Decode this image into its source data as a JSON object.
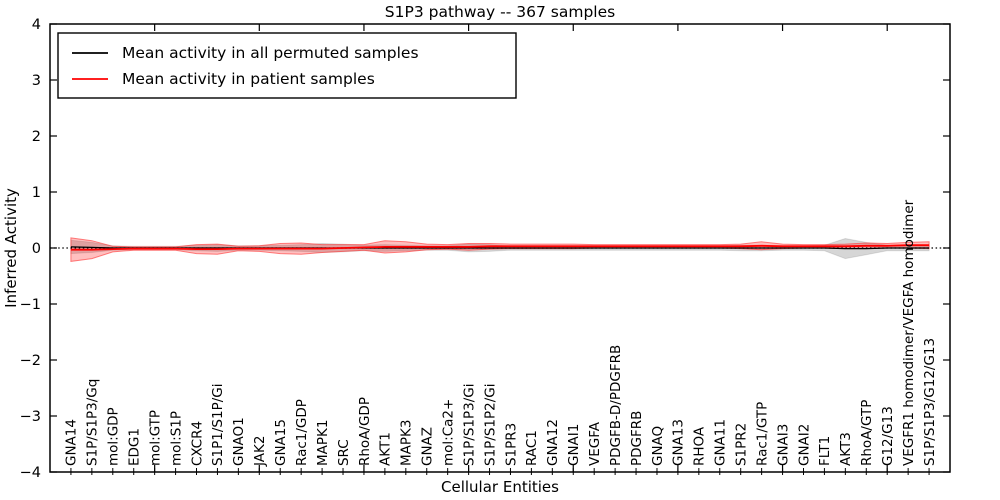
{
  "chart_data": {
    "type": "line",
    "title": "S1P3 pathway -- 367 samples",
    "xlabel": "Cellular Entities",
    "ylabel": "Inferred Activity",
    "ylim": [
      -4,
      4
    ],
    "xlim": [
      0,
      43
    ],
    "yticks": [
      -4,
      -3,
      -2,
      -1,
      0,
      1,
      2,
      3,
      4
    ],
    "ytick_labels": [
      "−4",
      "−3",
      "−2",
      "−1",
      "0",
      "1",
      "2",
      "3",
      "4"
    ],
    "top_axis_ticks": [
      5,
      10,
      15,
      20,
      25,
      30,
      35,
      40
    ],
    "grid": false,
    "legend_position": "upper left",
    "zero_line": {
      "value": 0,
      "style": "dotted",
      "color": "#000000"
    },
    "categories": [
      "GNA14",
      "S1P/S1P3/Gq",
      "mol:GDP",
      "EDG1",
      "mol:GTP",
      "mol:S1P",
      "CXCR4",
      "S1P1/S1P/Gi",
      "GNAO1",
      "JAK2",
      "GNA15",
      "Rac1/GDP",
      "MAPK1",
      "SRC",
      "RhoA/GDP",
      "AKT1",
      "MAPK3",
      "GNAZ",
      "mol:Ca2+",
      "S1P/S1P3/Gi",
      "S1P/S1P2/Gi",
      "S1PR3",
      "RAC1",
      "GNA12",
      "GNAI1",
      "VEGFA",
      "PDGFB-D/PDGFRB",
      "PDGFRB",
      "GNAQ",
      "GNA13",
      "RHOA",
      "GNA11",
      "S1PR2",
      "Rac1/GTP",
      "GNAI3",
      "GNAI2",
      "FLT1",
      "AKT3",
      "RhoA/GTP",
      "G12/G13",
      "VEGFR1 homodimer/VEGFA homodimer",
      "S1P/S1P3/G12/G13"
    ],
    "series": [
      {
        "name": "Mean activity in all permuted samples",
        "color": "#000000",
        "band_fill": "rgba(0,0,0,0.16)",
        "band_edge": "rgba(0,0,0,0.10)",
        "line_width": 1.3,
        "mean": [
          0.02,
          0.01,
          0,
          0,
          0,
          0,
          0,
          0,
          0,
          0,
          0,
          0,
          0,
          0,
          0,
          0,
          0,
          0,
          0,
          0,
          0,
          0,
          0,
          0,
          0,
          0,
          0,
          0,
          0,
          0,
          0,
          0,
          0,
          0,
          0,
          0,
          0,
          -0.01,
          -0.01,
          0,
          0,
          0
        ],
        "spread": [
          0.12,
          0.09,
          0.04,
          0.03,
          0.03,
          0.03,
          0.05,
          0.06,
          0.04,
          0.04,
          0.05,
          0.06,
          0.08,
          0.07,
          0.05,
          0.06,
          0.05,
          0.04,
          0.04,
          0.07,
          0.06,
          0.04,
          0.04,
          0.04,
          0.04,
          0.04,
          0.04,
          0.04,
          0.04,
          0.04,
          0.04,
          0.04,
          0.05,
          0.05,
          0.04,
          0.04,
          0.05,
          0.18,
          0.11,
          0.05,
          0.05,
          0.05
        ]
      },
      {
        "name": "Mean activity in patient samples",
        "color": "#ff0000",
        "band_fill": "rgba(255,0,0,0.25)",
        "band_edge": "rgba(255,60,60,0.65)",
        "line_width": 1.8,
        "mean": [
          -0.03,
          -0.03,
          -0.02,
          -0.01,
          -0.01,
          -0.01,
          -0.02,
          -0.02,
          -0.01,
          -0.01,
          -0.01,
          -0.01,
          -0.01,
          0,
          0.01,
          0.02,
          0.02,
          0.02,
          0.02,
          0.02,
          0.03,
          0.03,
          0.03,
          0.03,
          0.03,
          0.03,
          0.03,
          0.03,
          0.03,
          0.03,
          0.03,
          0.03,
          0.03,
          0.04,
          0.03,
          0.03,
          0.03,
          0.03,
          0.04,
          0.04,
          0.05,
          0.05
        ],
        "spread": [
          0.21,
          0.16,
          0.05,
          0.03,
          0.03,
          0.03,
          0.08,
          0.09,
          0.04,
          0.05,
          0.09,
          0.1,
          0.07,
          0.06,
          0.05,
          0.11,
          0.09,
          0.05,
          0.04,
          0.06,
          0.05,
          0.04,
          0.04,
          0.04,
          0.04,
          0.03,
          0.03,
          0.03,
          0.03,
          0.03,
          0.03,
          0.03,
          0.04,
          0.07,
          0.04,
          0.03,
          0.03,
          0.04,
          0.05,
          0.04,
          0.05,
          0.06
        ]
      }
    ]
  }
}
